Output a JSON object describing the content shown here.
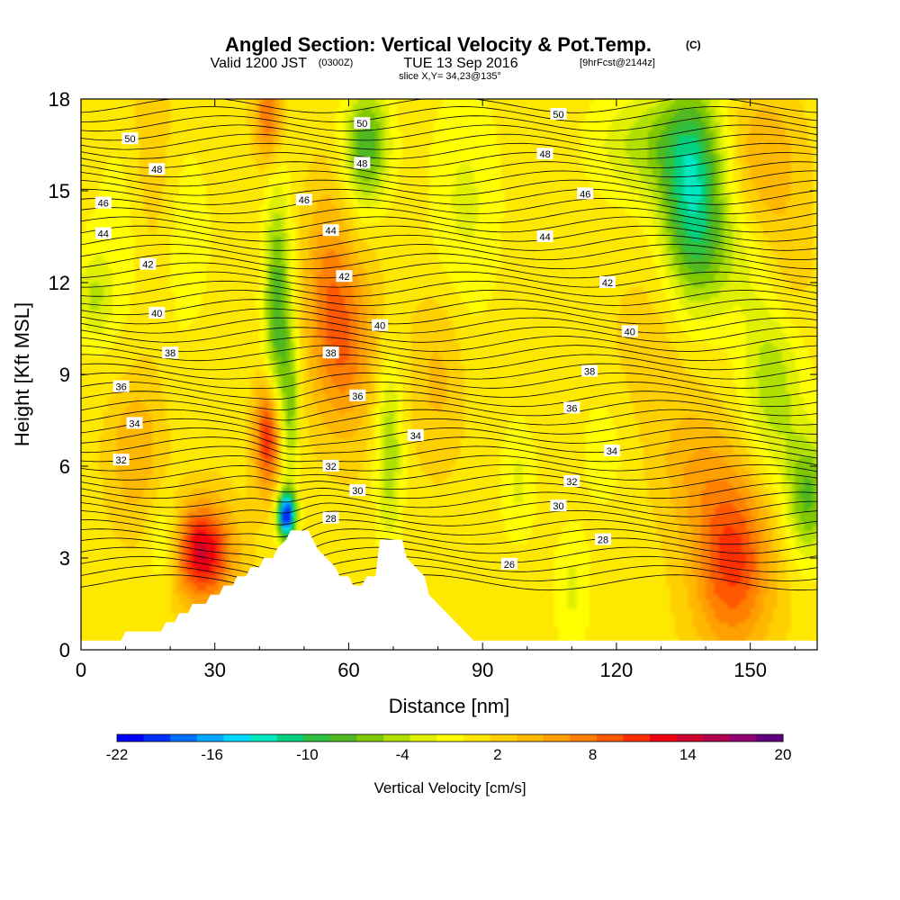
{
  "title": {
    "main": "Angled Section: Vertical Velocity & Pot.Temp.",
    "main_suffix": "(C)",
    "valid_prefix": "Valid 1200 JST",
    "valid_zulu": "(0300Z)",
    "valid_date": "TUE 13 Sep 2016",
    "valid_fcst": "[9hrFcst@2144z]",
    "slice": "slice X,Y= 34,23@135°"
  },
  "chart_data": {
    "type": "heatmap",
    "xlabel": "Distance [nm]",
    "ylabel": "Height [Kft MSL]",
    "xlim": [
      0,
      165
    ],
    "ylim": [
      0,
      18
    ],
    "x_ticks": [
      0,
      30,
      60,
      90,
      120,
      150
    ],
    "y_ticks": [
      0,
      3,
      6,
      9,
      12,
      15,
      18
    ],
    "colorbar": {
      "title": "Vertical Velocity [cm/s]",
      "min": -22,
      "max": 20,
      "tick_values": [
        -22,
        -16,
        -10,
        -4,
        2,
        8,
        14,
        20
      ],
      "tick_labels": [
        "-22",
        "-16",
        "-10",
        "-4",
        "2",
        "8",
        "14",
        "20"
      ],
      "colors": [
        "#0000ff",
        "#0030ff",
        "#0070ff",
        "#00a8ff",
        "#00d8ff",
        "#00e8c0",
        "#00d080",
        "#30c040",
        "#50b820",
        "#80c800",
        "#b0e000",
        "#e0f000",
        "#ffff00",
        "#ffe800",
        "#ffd000",
        "#ffb800",
        "#ffa000",
        "#ff8000",
        "#ff5800",
        "#ff3000",
        "#f00010",
        "#d00030",
        "#b00050",
        "#900070",
        "#600080"
      ]
    },
    "terrain_kft": [
      [
        0,
        0.3
      ],
      [
        9,
        0.3
      ],
      [
        10,
        0.6
      ],
      [
        18,
        0.6
      ],
      [
        19,
        0.9
      ],
      [
        21,
        0.9
      ],
      [
        22,
        1.2
      ],
      [
        24,
        1.2
      ],
      [
        25,
        1.5
      ],
      [
        28,
        1.5
      ],
      [
        29,
        1.8
      ],
      [
        31,
        1.8
      ],
      [
        32,
        2.1
      ],
      [
        34,
        2.1
      ],
      [
        35,
        2.4
      ],
      [
        37,
        2.4
      ],
      [
        38,
        2.7
      ],
      [
        40,
        2.7
      ],
      [
        41,
        3.0
      ],
      [
        43,
        3.0
      ],
      [
        44,
        3.3
      ],
      [
        46,
        3.6
      ],
      [
        47,
        3.9
      ],
      [
        51,
        3.9
      ],
      [
        52,
        3.6
      ],
      [
        53,
        3.3
      ],
      [
        55,
        3.0
      ],
      [
        57,
        2.7
      ],
      [
        58,
        2.4
      ],
      [
        60,
        2.4
      ],
      [
        61,
        2.1
      ],
      [
        63,
        2.1
      ],
      [
        64,
        2.4
      ],
      [
        66,
        2.4
      ],
      [
        67,
        3.6
      ],
      [
        72,
        3.6
      ],
      [
        73,
        3.0
      ],
      [
        75,
        2.7
      ],
      [
        77,
        2.4
      ],
      [
        78,
        1.8
      ],
      [
        80,
        1.5
      ],
      [
        82,
        1.2
      ],
      [
        84,
        0.9
      ],
      [
        86,
        0.6
      ],
      [
        88,
        0.3
      ],
      [
        165,
        0.3
      ]
    ],
    "w_features": [
      {
        "x": 27,
        "y": 3.2,
        "rx": 7,
        "ry": 1.6,
        "w": 13
      },
      {
        "x": 42,
        "y": 7.0,
        "rx": 3,
        "ry": 1.8,
        "w": 12
      },
      {
        "x": 42,
        "y": 17.5,
        "rx": 3,
        "ry": 1.5,
        "w": 8
      },
      {
        "x": 59,
        "y": 10.0,
        "rx": 7,
        "ry": 3.0,
        "w": 7
      },
      {
        "x": 55,
        "y": 12.5,
        "rx": 5,
        "ry": 3.0,
        "w": 4
      },
      {
        "x": 12,
        "y": 6.5,
        "rx": 6,
        "ry": 2.5,
        "w": 4
      },
      {
        "x": 16,
        "y": 15.0,
        "rx": 5,
        "ry": 5.0,
        "w": 4
      },
      {
        "x": 146,
        "y": 3.0,
        "rx": 9,
        "ry": 3.0,
        "w": 10
      },
      {
        "x": 137,
        "y": 6.0,
        "rx": 8,
        "ry": 2.0,
        "w": 3
      },
      {
        "x": 153,
        "y": 16.0,
        "rx": 8,
        "ry": 2.5,
        "w": 4
      },
      {
        "x": 158,
        "y": 12.0,
        "rx": 6,
        "ry": 2.5,
        "w": 3
      },
      {
        "x": 80,
        "y": 9.0,
        "rx": 6,
        "ry": 3.0,
        "w": 3
      },
      {
        "x": 130,
        "y": 10.0,
        "rx": 10,
        "ry": 3.0,
        "w": 2
      },
      {
        "x": 46,
        "y": 4.4,
        "rx": 2,
        "ry": 0.8,
        "w": -21
      },
      {
        "x": 44,
        "y": 11.0,
        "rx": 3,
        "ry": 4.0,
        "w": -9
      },
      {
        "x": 47,
        "y": 8.0,
        "rx": 2,
        "ry": 2.5,
        "w": -6
      },
      {
        "x": 64,
        "y": 16.5,
        "rx": 5,
        "ry": 2.0,
        "w": -9
      },
      {
        "x": 69,
        "y": 6.5,
        "rx": 3,
        "ry": 3.0,
        "w": -6
      },
      {
        "x": 137,
        "y": 14.8,
        "rx": 7,
        "ry": 3.5,
        "w": -12
      },
      {
        "x": 127,
        "y": 16.5,
        "rx": 12,
        "ry": 1.8,
        "w": -5
      },
      {
        "x": 155,
        "y": 9.0,
        "rx": 7,
        "ry": 3.5,
        "w": -6
      },
      {
        "x": 163,
        "y": 5.0,
        "rx": 5,
        "ry": 2.0,
        "w": -8
      },
      {
        "x": 3,
        "y": 11.5,
        "rx": 4,
        "ry": 1.5,
        "w": -4
      },
      {
        "x": 16,
        "y": 13.5,
        "rx": 12,
        "ry": 4.0,
        "w": -3
      },
      {
        "x": 19,
        "y": 3.5,
        "rx": 4,
        "ry": 1.5,
        "w": -5
      },
      {
        "x": 86,
        "y": 14.5,
        "rx": 8,
        "ry": 4.0,
        "w": -3
      },
      {
        "x": 98,
        "y": 5.5,
        "rx": 4,
        "ry": 2.0,
        "w": -3
      },
      {
        "x": 110,
        "y": 2.0,
        "rx": 4,
        "ry": 2.0,
        "w": -3
      },
      {
        "x": 117,
        "y": 6.5,
        "rx": 5,
        "ry": 2.0,
        "w": -2
      },
      {
        "x": 145,
        "y": 13.0,
        "rx": 8,
        "ry": 2.0,
        "w": -3
      }
    ],
    "theta_contours": [
      {
        "value": 26,
        "label": "26",
        "label_x": 96,
        "label_y": 2.8
      },
      {
        "value": 28,
        "label": "28",
        "label_x": 56,
        "label_y": 4.3
      },
      {
        "value": 28,
        "label": "28",
        "label_x": 117,
        "label_y": 3.6
      },
      {
        "value": 30,
        "label": "30",
        "label_x": 62,
        "label_y": 5.2
      },
      {
        "value": 30,
        "label": "30",
        "label_x": 107,
        "label_y": 4.7
      },
      {
        "value": 32,
        "label": "32",
        "label_x": 9,
        "label_y": 6.2
      },
      {
        "value": 32,
        "label": "32",
        "label_x": 56,
        "label_y": 6.0
      },
      {
        "value": 32,
        "label": "32",
        "label_x": 110,
        "label_y": 5.5
      },
      {
        "value": 34,
        "label": "34",
        "label_x": 12,
        "label_y": 7.4
      },
      {
        "value": 34,
        "label": "34",
        "label_x": 75,
        "label_y": 7.0
      },
      {
        "value": 34,
        "label": "34",
        "label_x": 119,
        "label_y": 6.5
      },
      {
        "value": 36,
        "label": "36",
        "label_x": 9,
        "label_y": 8.6
      },
      {
        "value": 36,
        "label": "36",
        "label_x": 62,
        "label_y": 8.3
      },
      {
        "value": 36,
        "label": "36",
        "label_x": 110,
        "label_y": 7.9
      },
      {
        "value": 38,
        "label": "38",
        "label_x": 20,
        "label_y": 9.7
      },
      {
        "value": 38,
        "label": "38",
        "label_x": 56,
        "label_y": 9.7
      },
      {
        "value": 38,
        "label": "38",
        "label_x": 114,
        "label_y": 9.1
      },
      {
        "value": 40,
        "label": "40",
        "label_x": 17,
        "label_y": 11.0
      },
      {
        "value": 40,
        "label": "40",
        "label_x": 67,
        "label_y": 10.6
      },
      {
        "value": 40,
        "label": "40",
        "label_x": 123,
        "label_y": 10.4
      },
      {
        "value": 42,
        "label": "42",
        "label_x": 15,
        "label_y": 12.6
      },
      {
        "value": 42,
        "label": "42",
        "label_x": 59,
        "label_y": 12.2
      },
      {
        "value": 42,
        "label": "42",
        "label_x": 118,
        "label_y": 12.0
      },
      {
        "value": 44,
        "label": "44",
        "label_x": 5,
        "label_y": 13.6
      },
      {
        "value": 44,
        "label": "44",
        "label_x": 56,
        "label_y": 13.7
      },
      {
        "value": 44,
        "label": "44",
        "label_x": 104,
        "label_y": 13.5
      },
      {
        "value": 46,
        "label": "46",
        "label_x": 5,
        "label_y": 14.6
      },
      {
        "value": 46,
        "label": "46",
        "label_x": 50,
        "label_y": 14.7
      },
      {
        "value": 46,
        "label": "46",
        "label_x": 113,
        "label_y": 14.9
      },
      {
        "value": 48,
        "label": "48",
        "label_x": 17,
        "label_y": 15.7
      },
      {
        "value": 48,
        "label": "48",
        "label_x": 63,
        "label_y": 15.9
      },
      {
        "value": 48,
        "label": "48",
        "label_x": 104,
        "label_y": 16.2
      },
      {
        "value": 50,
        "label": "50",
        "label_x": 11,
        "label_y": 16.7
      },
      {
        "value": 50,
        "label": "50",
        "label_x": 63,
        "label_y": 17.2
      },
      {
        "value": 50,
        "label": "50",
        "label_x": 107,
        "label_y": 17.5
      }
    ]
  }
}
